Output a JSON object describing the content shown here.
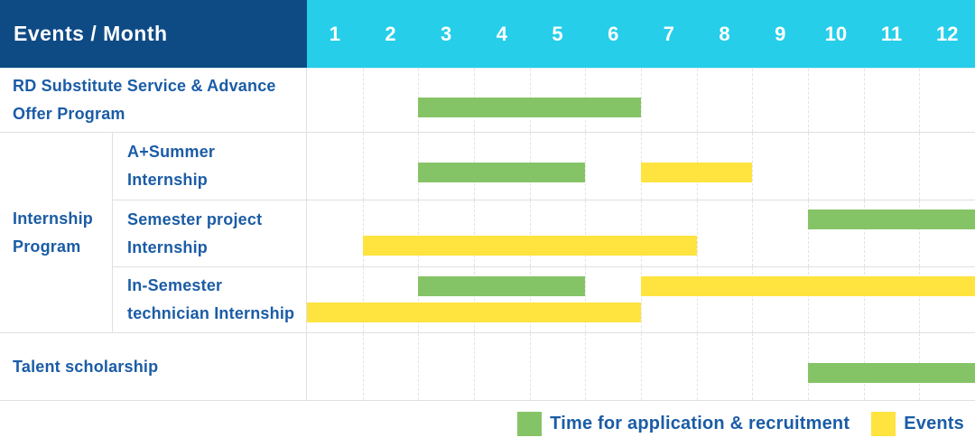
{
  "header": {
    "title": "Events / Month",
    "months": [
      "1",
      "2",
      "3",
      "4",
      "5",
      "6",
      "7",
      "8",
      "9",
      "10",
      "11",
      "12"
    ]
  },
  "colors": {
    "header_navy": "#0E4B85",
    "header_cyan": "#26CEE9",
    "bar_green": "#85C466",
    "bar_yellow": "#FFE33E",
    "label_blue": "#1B5CA6",
    "gridline": "#E3E3E3"
  },
  "legend": {
    "application": "Time for application & recruitment",
    "events": "Events"
  },
  "chart_data": {
    "type": "table",
    "subtype": "gantt",
    "title": "Events / Month",
    "x_axis": {
      "label": "Month",
      "ticks": [
        1,
        2,
        3,
        4,
        5,
        6,
        7,
        8,
        9,
        10,
        11,
        12
      ],
      "range": [
        1,
        12
      ]
    },
    "grid": "dashed-vertical",
    "legend_position": "bottom-right",
    "series_legend": [
      {
        "name": "Time for application & recruitment",
        "color": "#85C466",
        "series": "application"
      },
      {
        "name": "Events",
        "color": "#FFE33E",
        "series": "events"
      }
    ],
    "rows": [
      {
        "label": "RD Substitute Service & Advance Offer Program",
        "group": null,
        "bars": [
          {
            "series": "application",
            "start_month": 3,
            "end_month": 6,
            "line": "single"
          }
        ]
      },
      {
        "label": "A+Summer Internship",
        "group": "Internship Program",
        "bars": [
          {
            "series": "application",
            "start_month": 3,
            "end_month": 5,
            "line": "single"
          },
          {
            "series": "events",
            "start_month": 7,
            "end_month": 8,
            "line": "single"
          }
        ]
      },
      {
        "label": "Semester project Internship",
        "group": "Internship Program",
        "bars": [
          {
            "series": "application",
            "start_month": 10,
            "end_month": 12,
            "line": "upper"
          },
          {
            "series": "events",
            "start_month": 2,
            "end_month": 7,
            "line": "lower"
          }
        ]
      },
      {
        "label": "In-Semester technician Internship",
        "group": "Internship Program",
        "bars": [
          {
            "series": "application",
            "start_month": 3,
            "end_month": 5,
            "line": "upper"
          },
          {
            "series": "events",
            "start_month": 7,
            "end_month": 12,
            "line": "upper"
          },
          {
            "series": "events",
            "start_month": 1,
            "end_month": 6,
            "line": "lower"
          }
        ]
      },
      {
        "label": "Talent scholarship",
        "group": null,
        "bars": [
          {
            "series": "application",
            "start_month": 10,
            "end_month": 12,
            "line": "single"
          }
        ]
      }
    ]
  }
}
